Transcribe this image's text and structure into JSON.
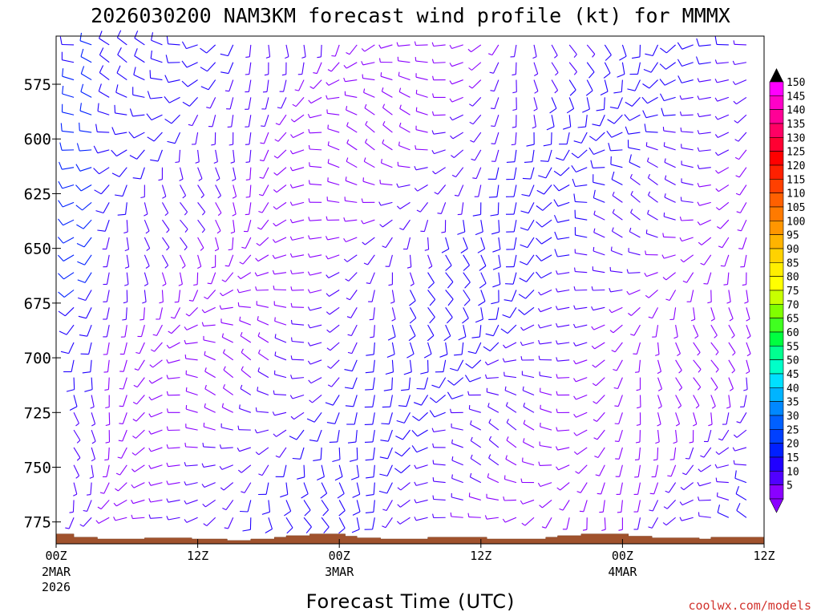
{
  "chart_data": {
    "type": "wind-barbs",
    "title": "2026030200 NAM3KM forecast wind profile (kt) for MMMX",
    "xlabel": "Forecast Time (UTC)",
    "ylabel": "",
    "credit": "coolwx.com/models",
    "y_ticks": [
      "575",
      "600",
      "625",
      "650",
      "675",
      "700",
      "725",
      "750",
      "775"
    ],
    "y_tick_values": [
      575,
      600,
      625,
      650,
      675,
      700,
      725,
      750,
      775
    ],
    "y_range": [
      553,
      785
    ],
    "x_ticks": [
      {
        "hour": 0,
        "label": "00Z",
        "sub1": "2MAR",
        "sub2": "2026"
      },
      {
        "hour": 12,
        "label": "12Z",
        "sub1": "",
        "sub2": ""
      },
      {
        "hour": 24,
        "label": "00Z",
        "sub1": "3MAR",
        "sub2": ""
      },
      {
        "hour": 36,
        "label": "12Z",
        "sub1": "",
        "sub2": ""
      },
      {
        "hour": 48,
        "label": "00Z",
        "sub1": "4MAR",
        "sub2": ""
      },
      {
        "hour": 60,
        "label": "12Z",
        "sub1": "",
        "sub2": ""
      }
    ],
    "x_range_hours": [
      0,
      60
    ],
    "colorbar": {
      "values": [
        "150",
        "145",
        "140",
        "135",
        "130",
        "125",
        "120",
        "115",
        "110",
        "105",
        "100",
        "95",
        "90",
        "85",
        "80",
        "75",
        "70",
        "65",
        "60",
        "55",
        "50",
        "45",
        "40",
        "35",
        "30",
        "25",
        "20",
        "15",
        "10",
        "5"
      ],
      "colors": [
        "#ff00ff",
        "#ff00c8",
        "#ff0096",
        "#ff0064",
        "#ff0032",
        "#ff0000",
        "#ff2000",
        "#ff4000",
        "#ff6000",
        "#ff7a00",
        "#ff9600",
        "#ffb400",
        "#ffd200",
        "#ffee00",
        "#ffff00",
        "#c8ff00",
        "#80ff00",
        "#40ff20",
        "#00ff40",
        "#00ff90",
        "#00ffc8",
        "#00e0ff",
        "#00b4ff",
        "#0088ff",
        "#0060ff",
        "#0040ff",
        "#0020ff",
        "#2000ff",
        "#5000ff",
        "#8a00ff"
      ]
    },
    "terrain_surface_hpa": [
      [
        0,
        780.5
      ],
      [
        1.5,
        782
      ],
      [
        3.5,
        782.8
      ],
      [
        7.5,
        782.3
      ],
      [
        11.5,
        782.8
      ],
      [
        14.5,
        783.5
      ],
      [
        16.5,
        782.8
      ],
      [
        18.5,
        782
      ],
      [
        19.5,
        781.3
      ],
      [
        21.5,
        780.5
      ],
      [
        24.5,
        781.5
      ],
      [
        25.5,
        782.3
      ],
      [
        27.5,
        782.8
      ],
      [
        31.5,
        782
      ],
      [
        36.5,
        782.8
      ],
      [
        41.5,
        782
      ],
      [
        42.5,
        781.3
      ],
      [
        44.5,
        780.5
      ],
      [
        48.5,
        781.5
      ],
      [
        50.5,
        782.3
      ],
      [
        54.5,
        782.8
      ],
      [
        55.5,
        782
      ],
      [
        60,
        782
      ]
    ],
    "wind_profile": {
      "levels_hpa": [
        557,
        565,
        573,
        581,
        589,
        597,
        605,
        613,
        621,
        629,
        637,
        645,
        653,
        661,
        669,
        677,
        685,
        693,
        701,
        709,
        717,
        725,
        733,
        741,
        749,
        757,
        765,
        773
      ],
      "forecast_hours": [
        0,
        1.5,
        3,
        4.5,
        6,
        7.5,
        9,
        10.5,
        12,
        13.5,
        15,
        16.5,
        18,
        19.5,
        21,
        22.5,
        24,
        25.5,
        27,
        28.5,
        30,
        31.5,
        33,
        34.5,
        36,
        37.5,
        39,
        40.5,
        42,
        43.5,
        45,
        46.5,
        48,
        49.5,
        51,
        52.5,
        54,
        55.5,
        57,
        58.5,
        60
      ],
      "barb_units": "kt",
      "note": "Wind direction and speed at each level/time; barbs colored by speed using the colorbar."
    }
  }
}
